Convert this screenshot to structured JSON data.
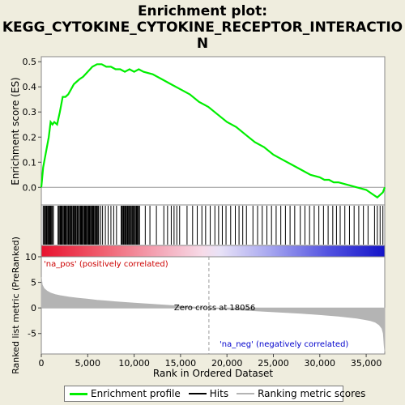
{
  "title_lines": [
    "Enrichment plot:",
    "KEGG_CYTOKINE_CYTOKINE_RECEPTOR_INTERACTIO",
    "N"
  ],
  "colors": {
    "es_line": "#00ee00",
    "hits": "#000000",
    "metric_fill": "#b4b4b4",
    "zero_line": "#999999",
    "pos_label": "#cc0000",
    "neg_label": "#0000cc"
  },
  "chart_data": [
    {
      "type": "line",
      "name": "enrichment-score-panel",
      "ylabel": "Enrichment score (ES)",
      "xlim": [
        0,
        37000
      ],
      "ylim": [
        -0.07,
        0.52
      ],
      "yticks": [
        0.0,
        0.1,
        0.2,
        0.3,
        0.4,
        0.5
      ],
      "ytick_labels": [
        "0.0",
        "0.1",
        "0.2",
        "0.3",
        "0.4",
        "0.5"
      ],
      "grid": false,
      "series": [
        {
          "name": "Enrichment profile",
          "x": [
            0,
            200,
            400,
            600,
            800,
            1000,
            1200,
            1400,
            1700,
            2000,
            2300,
            2600,
            2900,
            3200,
            3500,
            3800,
            4100,
            4500,
            5000,
            5500,
            6000,
            6500,
            7000,
            7500,
            8000,
            8500,
            9000,
            9500,
            10000,
            10500,
            11000,
            12000,
            13000,
            14000,
            15000,
            16000,
            17000,
            18000,
            19000,
            20000,
            21000,
            22000,
            23000,
            24000,
            25000,
            26000,
            27000,
            28000,
            29000,
            30000,
            30500,
            31000,
            31500,
            32000,
            33000,
            34000,
            35000,
            35800,
            36200,
            36500,
            36800,
            37000
          ],
          "y": [
            0.0,
            0.08,
            0.12,
            0.16,
            0.2,
            0.26,
            0.25,
            0.26,
            0.25,
            0.3,
            0.36,
            0.36,
            0.37,
            0.39,
            0.41,
            0.42,
            0.43,
            0.44,
            0.46,
            0.48,
            0.49,
            0.49,
            0.48,
            0.48,
            0.47,
            0.47,
            0.46,
            0.47,
            0.46,
            0.47,
            0.46,
            0.45,
            0.43,
            0.41,
            0.39,
            0.37,
            0.34,
            0.32,
            0.29,
            0.26,
            0.24,
            0.21,
            0.18,
            0.16,
            0.13,
            0.11,
            0.09,
            0.07,
            0.05,
            0.04,
            0.03,
            0.03,
            0.02,
            0.02,
            0.01,
            0.0,
            -0.01,
            -0.03,
            -0.04,
            -0.03,
            -0.02,
            0.0
          ]
        }
      ]
    },
    {
      "type": "barcode",
      "name": "hits-panel",
      "legend_label": "Hits",
      "xlim": [
        0,
        37000
      ],
      "dense_ranges": [
        [
          200,
          1400
        ],
        [
          1800,
          3000
        ],
        [
          3000,
          6200
        ],
        [
          8600,
          10600
        ]
      ],
      "hit_positions": [
        300,
        450,
        600,
        780,
        900,
        1050,
        1300,
        1900,
        2050,
        2200,
        2350,
        2500,
        2650,
        2800,
        2950,
        3150,
        3300,
        3450,
        3600,
        3750,
        3900,
        4100,
        4250,
        4400,
        4550,
        4700,
        4850,
        5000,
        5150,
        5300,
        5450,
        5600,
        5750,
        5900,
        6100,
        6400,
        6600,
        6900,
        7200,
        7500,
        7800,
        8100,
        8700,
        8900,
        9100,
        9300,
        9500,
        9700,
        9900,
        10100,
        10300,
        10500,
        11200,
        11700,
        12400,
        13200,
        13600,
        14000,
        14300,
        14600,
        14900,
        15700,
        16300,
        16800,
        17300,
        17700,
        18200,
        18700,
        19100,
        19500,
        19900,
        20400,
        20900,
        21300,
        21700,
        22100,
        22800,
        23300,
        23800,
        24300,
        24800,
        25300,
        25800,
        26300,
        26800,
        27300,
        27900,
        28400,
        28900,
        29400,
        29900,
        30400,
        30900,
        31400,
        31800,
        32200,
        32700,
        33200,
        33700,
        34200,
        34700,
        35200,
        35900,
        36200,
        36500,
        36800
      ]
    },
    {
      "type": "area",
      "name": "ranked-metric-panel",
      "ylabel": "Ranked list metric (PreRanked)",
      "xlabel": "Rank in Ordered Dataset",
      "xlim": [
        0,
        37000
      ],
      "ylim": [
        -9,
        10
      ],
      "xticks": [
        0,
        5000,
        10000,
        15000,
        20000,
        25000,
        30000,
        35000
      ],
      "xtick_labels": [
        "0",
        "5,000",
        "10,000",
        "15,000",
        "20,000",
        "25,000",
        "30,000",
        "35,000"
      ],
      "yticks": [
        10,
        5,
        0,
        -5
      ],
      "ytick_labels": [
        "10",
        "5",
        "0",
        "-5"
      ],
      "zero_cross_rank": 18056,
      "zero_cross_label": "Zero cross at 18056",
      "pos_label": "'na_pos' (positively correlated)",
      "neg_label": "'na_neg' (negatively correlated)",
      "series": [
        {
          "name": "Ranking metric scores",
          "x": [
            0,
            100,
            300,
            600,
            1000,
            1500,
            2000,
            3000,
            4000,
            5000,
            6000,
            8000,
            10000,
            12000,
            14000,
            16000,
            18056,
            20000,
            22000,
            24000,
            26000,
            28000,
            30000,
            32000,
            33000,
            34000,
            35000,
            35500,
            36000,
            36400,
            36700,
            36850,
            36950,
            37000
          ],
          "y": [
            6.0,
            4.5,
            3.8,
            3.3,
            2.9,
            2.6,
            2.4,
            2.1,
            1.9,
            1.7,
            1.5,
            1.2,
            0.95,
            0.7,
            0.45,
            0.2,
            0.0,
            -0.25,
            -0.45,
            -0.65,
            -0.85,
            -1.05,
            -1.3,
            -1.6,
            -1.8,
            -2.0,
            -2.3,
            -2.5,
            -2.8,
            -3.3,
            -4.0,
            -5.0,
            -7.5,
            -8.5
          ]
        }
      ]
    }
  ],
  "legend": {
    "items": [
      {
        "label": "Enrichment profile",
        "color": "#00ee00"
      },
      {
        "label": "Hits",
        "color": "#000000"
      },
      {
        "label": "Ranking metric scores",
        "color": "#b4b4b4"
      }
    ]
  }
}
